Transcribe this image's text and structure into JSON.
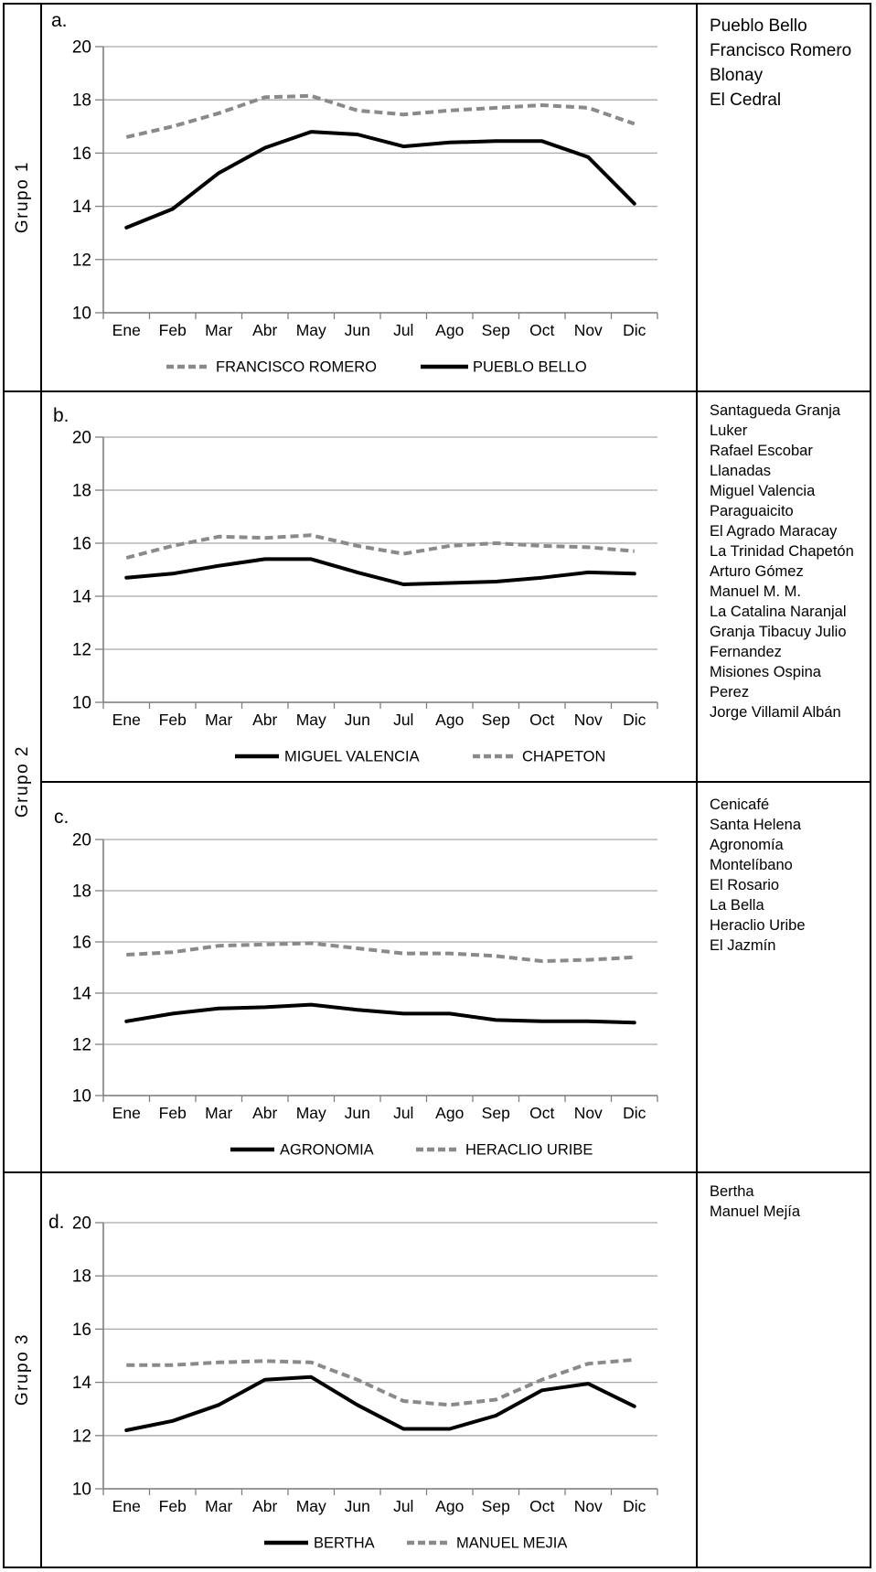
{
  "groups": [
    {
      "label": "Grupo 1"
    },
    {
      "label": "Grupo 2"
    },
    {
      "label": "Grupo 3"
    }
  ],
  "months": [
    "Ene",
    "Feb",
    "Mar",
    "Abr",
    "May",
    "Jun",
    "Jul",
    "Ago",
    "Sep",
    "Oct",
    "Nov",
    "Dic"
  ],
  "colors": {
    "solid_series": "#000000",
    "dashed_series": "#8a8a8a",
    "gridline": "#a8a8a8",
    "axis_line": "#7f7f7f",
    "border": "#000000"
  },
  "chart_data": [
    {
      "id": "a",
      "panel_label": "a.",
      "type": "line",
      "group": "Grupo 1",
      "categories": [
        "Ene",
        "Feb",
        "Mar",
        "Abr",
        "May",
        "Jun",
        "Jul",
        "Ago",
        "Sep",
        "Oct",
        "Nov",
        "Dic"
      ],
      "ylim": [
        10,
        20
      ],
      "yticks": [
        10,
        12,
        14,
        16,
        18,
        20
      ],
      "grid": true,
      "legend_position": "bottom",
      "series": [
        {
          "name": "FRANCISCO ROMERO",
          "style": "dashed",
          "color": "#8a8a8a",
          "values": [
            16.6,
            17.0,
            17.5,
            18.1,
            18.15,
            17.6,
            17.45,
            17.6,
            17.7,
            17.8,
            17.7,
            17.1
          ]
        },
        {
          "name": "PUEBLO BELLO",
          "style": "solid",
          "color": "#000000",
          "values": [
            13.2,
            13.9,
            15.25,
            16.2,
            16.8,
            16.7,
            16.25,
            16.4,
            16.45,
            16.45,
            15.85,
            14.1
          ]
        }
      ],
      "legend": [
        {
          "label": "FRANCISCO ROMERO",
          "style": "dashed"
        },
        {
          "label": "PUEBLO BELLO",
          "style": "solid"
        }
      ],
      "station_list": [
        "Pueblo Bello",
        "Francisco Romero",
        "Blonay",
        "El Cedral"
      ]
    },
    {
      "id": "b",
      "panel_label": "b.",
      "type": "line",
      "group": "Grupo 2",
      "categories": [
        "Ene",
        "Feb",
        "Mar",
        "Abr",
        "May",
        "Jun",
        "Jul",
        "Ago",
        "Sep",
        "Oct",
        "Nov",
        "Dic"
      ],
      "ylim": [
        10,
        20
      ],
      "yticks": [
        10,
        12,
        14,
        16,
        18,
        20
      ],
      "grid": true,
      "legend_position": "bottom",
      "series": [
        {
          "name": "CHAPETON",
          "style": "dashed",
          "color": "#8a8a8a",
          "values": [
            15.45,
            15.9,
            16.25,
            16.2,
            16.3,
            15.9,
            15.6,
            15.9,
            16.0,
            15.9,
            15.85,
            15.7
          ]
        },
        {
          "name": "MIGUEL VALENCIA",
          "style": "solid",
          "color": "#000000",
          "values": [
            14.7,
            14.85,
            15.15,
            15.4,
            15.4,
            14.9,
            14.45,
            14.5,
            14.55,
            14.7,
            14.9,
            14.85
          ]
        }
      ],
      "legend": [
        {
          "label": "MIGUEL VALENCIA",
          "style": "solid"
        },
        {
          "label": "CHAPETON",
          "style": "dashed"
        }
      ],
      "station_list": [
        "Santagueda Granja",
        "Luker",
        "Rafael Escobar",
        "Llanadas",
        "Miguel Valencia",
        "Paraguaicito",
        "El Agrado Maracay",
        "La Trinidad Chapetón",
        "Arturo Gómez",
        "Manuel M. M.",
        "La Catalina Naranjal",
        "Granja Tibacuy Julio",
        "Fernandez",
        "Misiones Ospina",
        "Perez",
        "Jorge Villamil Albán"
      ]
    },
    {
      "id": "c",
      "panel_label": "c.",
      "type": "line",
      "group": "Grupo 2",
      "categories": [
        "Ene",
        "Feb",
        "Mar",
        "Abr",
        "May",
        "Jun",
        "Jul",
        "Ago",
        "Sep",
        "Oct",
        "Nov",
        "Dic"
      ],
      "ylim": [
        10,
        20
      ],
      "yticks": [
        10,
        12,
        14,
        16,
        18,
        20
      ],
      "grid": true,
      "legend_position": "bottom",
      "series": [
        {
          "name": "HERACLIO URIBE",
          "style": "dashed",
          "color": "#8a8a8a",
          "values": [
            15.5,
            15.6,
            15.85,
            15.9,
            15.95,
            15.75,
            15.55,
            15.55,
            15.45,
            15.25,
            15.3,
            15.4
          ]
        },
        {
          "name": "AGRONOMIA",
          "style": "solid",
          "color": "#000000",
          "values": [
            12.9,
            13.2,
            13.4,
            13.45,
            13.55,
            13.35,
            13.2,
            13.2,
            12.95,
            12.9,
            12.9,
            12.85
          ]
        }
      ],
      "legend": [
        {
          "label": "AGRONOMIA",
          "style": "solid"
        },
        {
          "label": "HERACLIO URIBE",
          "style": "dashed"
        }
      ],
      "station_list": [
        "Cenicafé",
        "Santa Helena",
        "Agronomía",
        "Montelíbano",
        "El Rosario",
        "La Bella",
        "Heraclio Uribe",
        "El Jazmín"
      ]
    },
    {
      "id": "d",
      "panel_label": "d.",
      "type": "line",
      "group": "Grupo 3",
      "categories": [
        "Ene",
        "Feb",
        "Mar",
        "Abr",
        "May",
        "Jun",
        "Jul",
        "Ago",
        "Sep",
        "Oct",
        "Nov",
        "Dic"
      ],
      "ylim": [
        10,
        20
      ],
      "yticks": [
        10,
        12,
        14,
        16,
        18,
        20
      ],
      "grid": true,
      "legend_position": "bottom",
      "series": [
        {
          "name": "MANUEL MEJIA",
          "style": "dashed",
          "color": "#8a8a8a",
          "values": [
            14.65,
            14.65,
            14.75,
            14.8,
            14.75,
            14.1,
            13.3,
            13.15,
            13.35,
            14.1,
            14.7,
            14.85
          ]
        },
        {
          "name": "BERTHA",
          "style": "solid",
          "color": "#000000",
          "values": [
            12.2,
            12.55,
            13.15,
            14.1,
            14.2,
            13.15,
            12.25,
            12.25,
            12.75,
            13.7,
            13.95,
            13.1
          ]
        }
      ],
      "legend": [
        {
          "label": "BERTHA",
          "style": "solid"
        },
        {
          "label": "MANUEL MEJIA",
          "style": "dashed"
        }
      ],
      "station_list": [
        "Bertha",
        "Manuel Mejía"
      ]
    }
  ]
}
